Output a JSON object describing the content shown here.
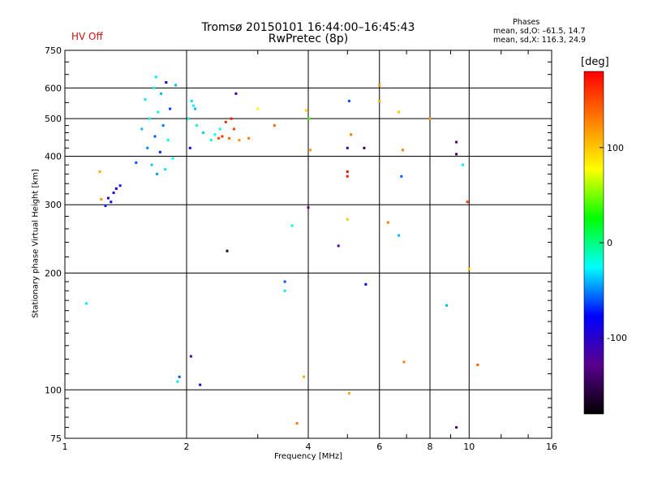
{
  "title": {
    "line1": "Tromsø 20150101 16:44:00–16:45:43",
    "line2": "RwPretec (8p)"
  },
  "hv_status": {
    "text": "HV Off",
    "color": "#d01010"
  },
  "phases_legend": {
    "title": "Phases",
    "line_o": "mean, sd,O: –61.5, 14.7",
    "line_x": "mean, sd,X: 116.3, 24.9"
  },
  "colorbar": {
    "unit": "[deg]",
    "ticks": [
      {
        "value": 100,
        "label": "100"
      },
      {
        "value": 0,
        "label": "0"
      },
      {
        "value": -100,
        "label": "-100"
      }
    ],
    "range": [
      -180,
      180
    ],
    "colormap": [
      "#000000",
      "#5a008c",
      "#0000ff",
      "#00ffff",
      "#00ff00",
      "#ffff00",
      "#ff7f00",
      "#ff0000"
    ]
  },
  "chart_data": {
    "type": "scatter",
    "title": "Tromsø 20150101 16:44:00–16:45:43",
    "subtitle": "RwPretec (8p)",
    "xlabel": "Frequency [MHz]",
    "ylabel": "Stationary phase Virtual Height [km]",
    "x_scale": "log",
    "y_scale": "log",
    "xlim": [
      1,
      16
    ],
    "ylim": [
      75,
      750
    ],
    "x_ticks": [
      1,
      2,
      4,
      6,
      8,
      10,
      16
    ],
    "y_ticks": [
      75,
      100,
      200,
      300,
      400,
      500,
      600,
      750
    ],
    "grid": true,
    "points": [
      {
        "x": 1.13,
        "y": 167,
        "phase": -30
      },
      {
        "x": 1.22,
        "y": 365,
        "phase": 110
      },
      {
        "x": 1.23,
        "y": 310,
        "phase": 120
      },
      {
        "x": 1.26,
        "y": 298,
        "phase": -70
      },
      {
        "x": 1.28,
        "y": 312,
        "phase": -90
      },
      {
        "x": 1.3,
        "y": 305,
        "phase": -80
      },
      {
        "x": 1.32,
        "y": 322,
        "phase": -100
      },
      {
        "x": 1.34,
        "y": 330,
        "phase": -85
      },
      {
        "x": 1.37,
        "y": 336,
        "phase": -70
      },
      {
        "x": 1.5,
        "y": 385,
        "phase": -60
      },
      {
        "x": 1.55,
        "y": 470,
        "phase": -40
      },
      {
        "x": 1.58,
        "y": 560,
        "phase": -30
      },
      {
        "x": 1.6,
        "y": 420,
        "phase": -50
      },
      {
        "x": 1.62,
        "y": 500,
        "phase": -20
      },
      {
        "x": 1.64,
        "y": 380,
        "phase": -35
      },
      {
        "x": 1.66,
        "y": 600,
        "phase": -25
      },
      {
        "x": 1.67,
        "y": 450,
        "phase": -60
      },
      {
        "x": 1.68,
        "y": 640,
        "phase": -30
      },
      {
        "x": 1.69,
        "y": 360,
        "phase": -45
      },
      {
        "x": 1.7,
        "y": 520,
        "phase": -15
      },
      {
        "x": 1.72,
        "y": 410,
        "phase": -70
      },
      {
        "x": 1.73,
        "y": 580,
        "phase": -40
      },
      {
        "x": 1.75,
        "y": 480,
        "phase": -55
      },
      {
        "x": 1.77,
        "y": 370,
        "phase": -30
      },
      {
        "x": 1.78,
        "y": 620,
        "phase": -85
      },
      {
        "x": 1.8,
        "y": 440,
        "phase": -20
      },
      {
        "x": 1.82,
        "y": 530,
        "phase": -65
      },
      {
        "x": 1.85,
        "y": 395,
        "phase": -25
      },
      {
        "x": 1.88,
        "y": 610,
        "phase": -40
      },
      {
        "x": 1.9,
        "y": 105,
        "phase": -30
      },
      {
        "x": 1.92,
        "y": 108,
        "phase": -60
      },
      {
        "x": 2.02,
        "y": 500,
        "phase": -20
      },
      {
        "x": 2.04,
        "y": 420,
        "phase": -90
      },
      {
        "x": 2.05,
        "y": 122,
        "phase": -120
      },
      {
        "x": 2.06,
        "y": 555,
        "phase": -30
      },
      {
        "x": 2.08,
        "y": 540,
        "phase": -25
      },
      {
        "x": 2.1,
        "y": 530,
        "phase": -40
      },
      {
        "x": 2.12,
        "y": 480,
        "phase": -20
      },
      {
        "x": 2.16,
        "y": 103,
        "phase": -100
      },
      {
        "x": 2.2,
        "y": 460,
        "phase": -35
      },
      {
        "x": 2.3,
        "y": 440,
        "phase": -15
      },
      {
        "x": 2.35,
        "y": 455,
        "phase": -25
      },
      {
        "x": 2.4,
        "y": 445,
        "phase": 150
      },
      {
        "x": 2.42,
        "y": 470,
        "phase": -20
      },
      {
        "x": 2.45,
        "y": 450,
        "phase": 160
      },
      {
        "x": 2.5,
        "y": 490,
        "phase": 165
      },
      {
        "x": 2.52,
        "y": 228,
        "phase": -160
      },
      {
        "x": 2.55,
        "y": 445,
        "phase": 140
      },
      {
        "x": 2.58,
        "y": 500,
        "phase": 170
      },
      {
        "x": 2.62,
        "y": 470,
        "phase": 155
      },
      {
        "x": 2.65,
        "y": 580,
        "phase": -110
      },
      {
        "x": 2.7,
        "y": 440,
        "phase": 120
      },
      {
        "x": 2.85,
        "y": 445,
        "phase": 130
      },
      {
        "x": 3.0,
        "y": 530,
        "phase": 80
      },
      {
        "x": 3.3,
        "y": 480,
        "phase": 140
      },
      {
        "x": 3.5,
        "y": 190,
        "phase": -60
      },
      {
        "x": 3.5,
        "y": 180,
        "phase": -30
      },
      {
        "x": 3.65,
        "y": 265,
        "phase": -20
      },
      {
        "x": 3.75,
        "y": 82,
        "phase": 130
      },
      {
        "x": 3.9,
        "y": 108,
        "phase": 110
      },
      {
        "x": 3.95,
        "y": 525,
        "phase": 100
      },
      {
        "x": 4.0,
        "y": 295,
        "phase": -130
      },
      {
        "x": 4.02,
        "y": 500,
        "phase": 40
      },
      {
        "x": 4.05,
        "y": 415,
        "phase": 120
      },
      {
        "x": 4.75,
        "y": 235,
        "phase": -120
      },
      {
        "x": 5.0,
        "y": 420,
        "phase": -110
      },
      {
        "x": 5.0,
        "y": 355,
        "phase": 170
      },
      {
        "x": 5.0,
        "y": 365,
        "phase": 175
      },
      {
        "x": 5.0,
        "y": 275,
        "phase": 100
      },
      {
        "x": 5.05,
        "y": 555,
        "phase": -60
      },
      {
        "x": 5.05,
        "y": 98,
        "phase": 110
      },
      {
        "x": 5.1,
        "y": 455,
        "phase": 130
      },
      {
        "x": 5.5,
        "y": 420,
        "phase": -150
      },
      {
        "x": 5.55,
        "y": 187,
        "phase": -80
      },
      {
        "x": 6.0,
        "y": 610,
        "phase": 120
      },
      {
        "x": 6.0,
        "y": 555,
        "phase": 110
      },
      {
        "x": 6.3,
        "y": 270,
        "phase": 130
      },
      {
        "x": 6.7,
        "y": 250,
        "phase": -40
      },
      {
        "x": 6.7,
        "y": 520,
        "phase": 100
      },
      {
        "x": 6.8,
        "y": 355,
        "phase": -60
      },
      {
        "x": 6.85,
        "y": 415,
        "phase": 130
      },
      {
        "x": 6.9,
        "y": 118,
        "phase": 130
      },
      {
        "x": 8.0,
        "y": 500,
        "phase": 120
      },
      {
        "x": 8.8,
        "y": 165,
        "phase": -40
      },
      {
        "x": 9.3,
        "y": 435,
        "phase": -140
      },
      {
        "x": 9.3,
        "y": 405,
        "phase": -150
      },
      {
        "x": 9.3,
        "y": 80,
        "phase": -140
      },
      {
        "x": 9.65,
        "y": 380,
        "phase": -30
      },
      {
        "x": 9.9,
        "y": 305,
        "phase": 160
      },
      {
        "x": 10.0,
        "y": 205,
        "phase": 100
      },
      {
        "x": 10.5,
        "y": 116,
        "phase": 140
      }
    ]
  }
}
